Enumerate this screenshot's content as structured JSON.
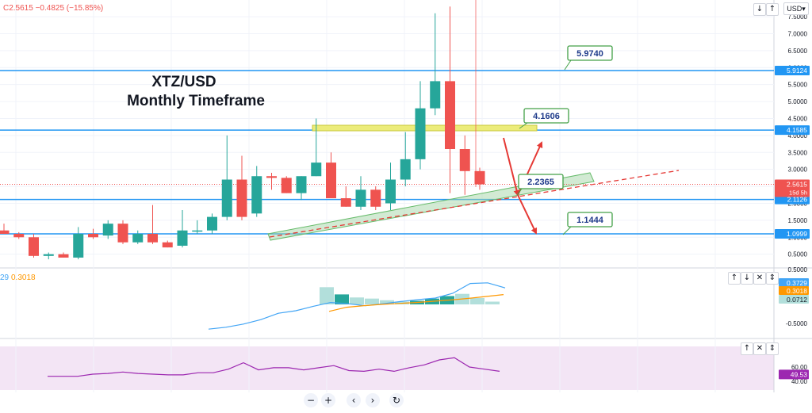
{
  "header": {
    "ohlc": "C2.5615 −0.4825 (−15.85%)",
    "currency": "USD",
    "currency_caret": "▾"
  },
  "title": {
    "line1": "XTZ/USD",
    "line2": "Monthly Timeframe"
  },
  "icons": {
    "arrow_down": "↓",
    "arrow_up": "↑",
    "collapse": "⇕",
    "close": "✕",
    "zoom_out": "−",
    "zoom_in": "+",
    "prev": "‹",
    "next": "›",
    "reset": "↻"
  },
  "macd_header": {
    "left": "29",
    "signal": "0.3018"
  },
  "colors": {
    "bull": "#26a69a",
    "bear": "#ef5350",
    "level": "#2196f3",
    "arrow": "#e53935",
    "channel": "#a5d6a7",
    "zone": "#ecec7a",
    "macd": "#42a5f5",
    "signal": "#ff9800",
    "rsi": "#9c27b0"
  },
  "chart_data": [
    {
      "type": "candlestick",
      "title": "XTZ/USD Monthly Timeframe",
      "ylim": [
        0.1,
        7.75
      ],
      "y_ticks": [
        "7.5000",
        "7.0000",
        "6.5000",
        "6.0000",
        "5.5000",
        "5.0000",
        "4.5000",
        "4.0000",
        "3.5000",
        "3.0000",
        "2.5000",
        "2.0000",
        "1.5000",
        "1.0000",
        "0.5000"
      ],
      "ohlc": [
        [
          1.2,
          1.4,
          1.1,
          1.1
        ],
        [
          1.1,
          1.15,
          0.95,
          1.0
        ],
        [
          1.0,
          1.1,
          0.4,
          0.45
        ],
        [
          0.45,
          0.55,
          0.35,
          0.5
        ],
        [
          0.5,
          0.55,
          0.4,
          0.4
        ],
        [
          0.4,
          1.3,
          0.35,
          1.1
        ],
        [
          1.1,
          1.25,
          0.95,
          1.0
        ],
        [
          1.05,
          1.5,
          0.95,
          1.4
        ],
        [
          1.4,
          1.5,
          0.8,
          0.85
        ],
        [
          0.85,
          1.2,
          0.8,
          1.1
        ],
        [
          1.1,
          1.95,
          0.8,
          0.85
        ],
        [
          0.85,
          0.9,
          0.7,
          0.7
        ],
        [
          0.75,
          1.8,
          0.7,
          1.2
        ],
        [
          1.2,
          1.5,
          1.1,
          1.2
        ],
        [
          1.2,
          1.7,
          1.1,
          1.6
        ],
        [
          1.6,
          4.0,
          1.5,
          2.7
        ],
        [
          2.7,
          3.4,
          1.5,
          1.6
        ],
        [
          1.7,
          3.1,
          1.6,
          2.8
        ],
        [
          2.8,
          2.9,
          2.4,
          2.75
        ],
        [
          2.75,
          2.8,
          2.3,
          2.3
        ],
        [
          2.3,
          2.8,
          2.1,
          2.8
        ],
        [
          2.8,
          4.5,
          2.8,
          3.2
        ],
        [
          3.2,
          3.5,
          2.2,
          2.15
        ],
        [
          2.15,
          2.5,
          1.9,
          1.9
        ],
        [
          1.9,
          2.8,
          1.8,
          2.4
        ],
        [
          2.4,
          2.5,
          1.8,
          1.9
        ],
        [
          2.0,
          3.2,
          1.8,
          2.7
        ],
        [
          2.7,
          4.1,
          2.5,
          3.3
        ],
        [
          3.3,
          5.6,
          3.0,
          4.8
        ],
        [
          4.8,
          7.6,
          4.6,
          5.6
        ],
        [
          5.6,
          7.8,
          2.3,
          3.6
        ],
        [
          3.6,
          4.0,
          2.25,
          2.95
        ],
        [
          2.95,
          3.05,
          2.4,
          2.56
        ]
      ],
      "levels": [
        5.9124,
        4.1585,
        2.1126,
        1.0999
      ],
      "callouts": [
        "5.9740",
        "4.1606",
        "2.2365",
        "1.1444"
      ],
      "last_price": {
        "value": "2.5615",
        "countdown": "15d 5h"
      },
      "level_labels": [
        "5.9124",
        "4.1585",
        "2.1126",
        "1.0999"
      ]
    },
    {
      "type": "macd",
      "y_ticks": [
        "0.5000",
        "-0.5000"
      ],
      "histogram": [
        0.62,
        0.36,
        0.25,
        0.21,
        0.15,
        0.1,
        0.13,
        0.21,
        0.3,
        0.38,
        0.23,
        0.1
      ],
      "macd_line": [
        -0.78,
        -0.72,
        -0.62,
        -0.48,
        -0.28,
        -0.2,
        -0.06,
        0.06,
        0.02,
        -0.04,
        0.02,
        0.09,
        0.15,
        0.2,
        0.35,
        0.66,
        0.68,
        0.52
      ],
      "signal_line": [
        -0.22,
        -0.09,
        -0.04,
        0.0,
        0.03,
        0.06,
        0.1,
        0.14,
        0.19,
        0.25,
        0.31
      ],
      "badges": [
        "0.3729",
        "0.3018",
        "0.0712"
      ]
    },
    {
      "type": "rsi",
      "y_ticks": [
        "60.00",
        "40.00"
      ],
      "values": [
        47,
        47,
        47,
        50,
        51,
        53,
        51,
        50,
        49,
        49,
        52,
        52,
        57,
        66,
        56,
        59,
        59,
        56,
        59,
        62,
        55,
        54,
        57,
        54,
        59,
        63,
        70,
        73,
        60,
        57,
        54
      ],
      "badge": "49.53"
    }
  ]
}
